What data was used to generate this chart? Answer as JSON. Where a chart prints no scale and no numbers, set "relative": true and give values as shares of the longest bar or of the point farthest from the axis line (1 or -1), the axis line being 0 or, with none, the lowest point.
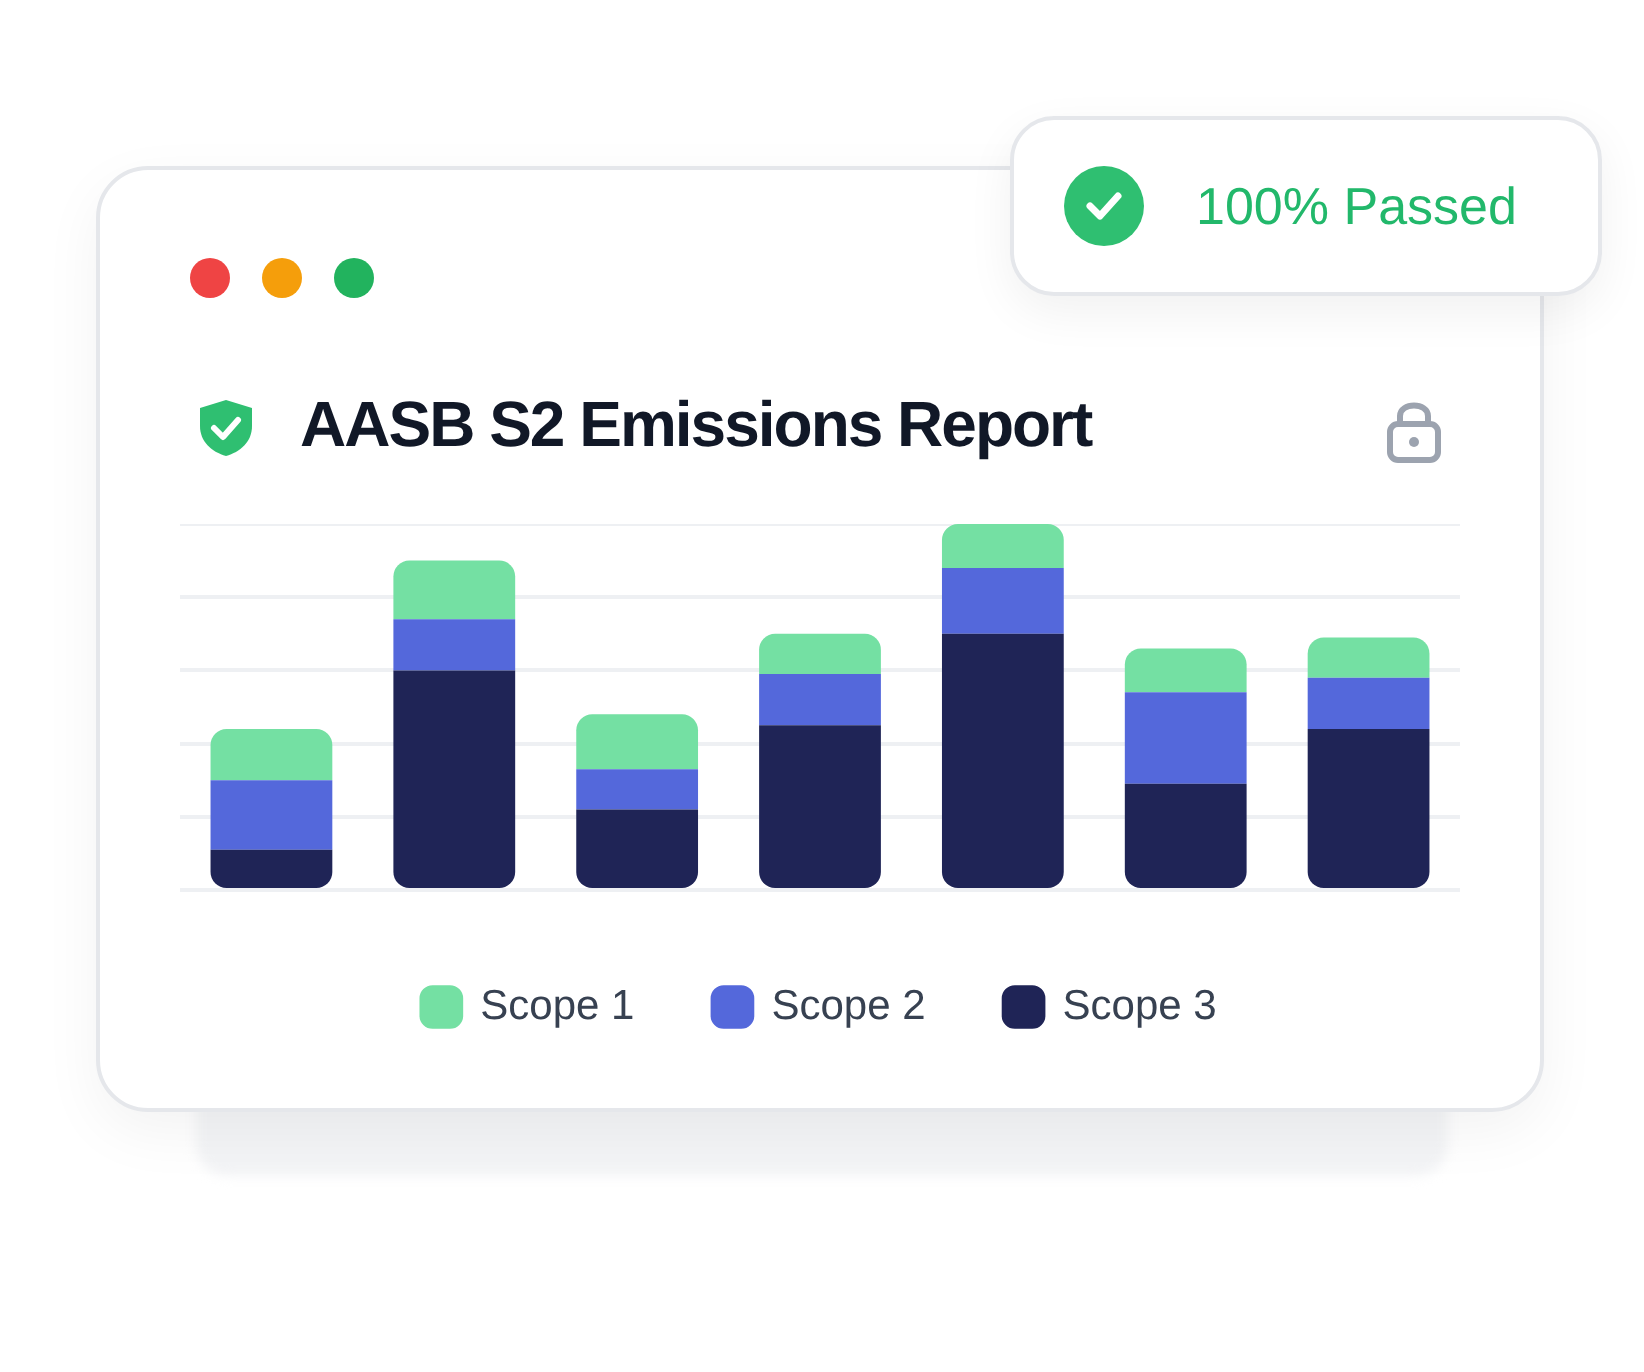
{
  "chart_data": {
    "type": "bar",
    "title": "AASB S2 Emissions Report",
    "annotations": [
      "100% Passed"
    ],
    "categories": [
      null,
      null,
      null,
      null,
      null,
      null,
      null
    ],
    "stacked": true,
    "relative": true,
    "grid": "y",
    "legend": "bottom",
    "series": [
      {
        "name": "Scope 3",
        "color": "#1f2456",
        "values": [
          0.11,
          0.6,
          0.22,
          0.45,
          0.7,
          0.29,
          0.44
        ]
      },
      {
        "name": "Scope 2",
        "color": "#5468db",
        "values": [
          0.19,
          0.14,
          0.11,
          0.14,
          0.18,
          0.25,
          0.14
        ]
      },
      {
        "name": "Scope 1",
        "color": "#74e0a3",
        "values": [
          0.14,
          0.16,
          0.15,
          0.11,
          0.12,
          0.12,
          0.11
        ]
      }
    ]
  }
}
